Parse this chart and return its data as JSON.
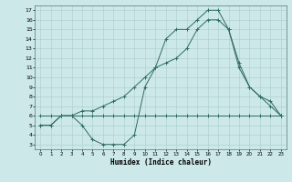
{
  "xlabel": "Humidex (Indice chaleur)",
  "background_color": "#cce8e8",
  "grid_color": "#aacccc",
  "line_color": "#2e6b60",
  "xlim": [
    -0.5,
    23.5
  ],
  "ylim": [
    2.5,
    17.5
  ],
  "xticks": [
    0,
    1,
    2,
    3,
    4,
    5,
    6,
    7,
    8,
    9,
    10,
    11,
    12,
    13,
    14,
    15,
    16,
    17,
    18,
    19,
    20,
    21,
    22,
    23
  ],
  "yticks": [
    3,
    4,
    5,
    6,
    7,
    8,
    9,
    10,
    11,
    12,
    13,
    14,
    15,
    16,
    17
  ],
  "line1_x": [
    0,
    1,
    2,
    3,
    4,
    5,
    6,
    7,
    8,
    9,
    10,
    11,
    12,
    13,
    14,
    15,
    16,
    17,
    18,
    19,
    20,
    21,
    22,
    23
  ],
  "line1_y": [
    6,
    6,
    6,
    6,
    6,
    6,
    6,
    6,
    6,
    6,
    6,
    6,
    6,
    6,
    6,
    6,
    6,
    6,
    6,
    6,
    6,
    6,
    6,
    6
  ],
  "line2_x": [
    0,
    1,
    2,
    3,
    4,
    5,
    6,
    7,
    8,
    9,
    10,
    11,
    12,
    13,
    14,
    15,
    16,
    17,
    18,
    19,
    20,
    21,
    22,
    23
  ],
  "line2_y": [
    5,
    5,
    6,
    6,
    5,
    3.5,
    3,
    3,
    3,
    4,
    9,
    11,
    14,
    15,
    15,
    16,
    17,
    17,
    15,
    11,
    9,
    8,
    7,
    6
  ],
  "line3_x": [
    0,
    1,
    2,
    3,
    4,
    5,
    6,
    7,
    8,
    9,
    10,
    11,
    12,
    13,
    14,
    15,
    16,
    17,
    18,
    19,
    20,
    21,
    22,
    23
  ],
  "line3_y": [
    5,
    5,
    6,
    6,
    6.5,
    6.5,
    7,
    7.5,
    8,
    9,
    10,
    11,
    11.5,
    12,
    13,
    15,
    16,
    16,
    15,
    11.5,
    9,
    8,
    7.5,
    6
  ]
}
